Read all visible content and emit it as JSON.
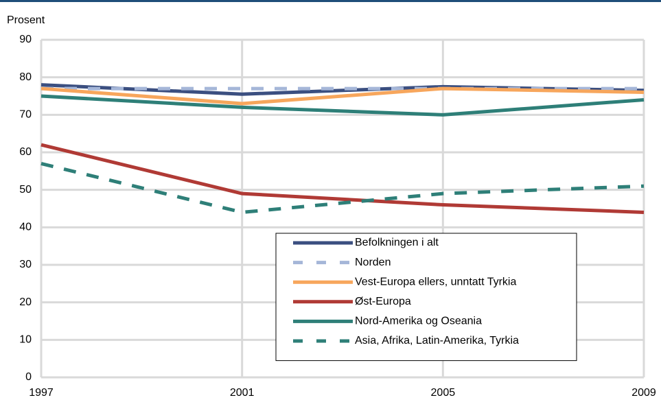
{
  "chart_data": {
    "type": "line",
    "y_label": "Prosent",
    "x": [
      1997,
      2001,
      2005,
      2009
    ],
    "xlim": [
      1997,
      2009
    ],
    "xticks": [
      1997,
      2001,
      2005,
      2009
    ],
    "ylim": [
      0,
      90
    ],
    "yticks": [
      0,
      10,
      20,
      30,
      40,
      50,
      60,
      70,
      80,
      90
    ],
    "grid": true,
    "series": [
      {
        "name": "Befolkningen i alt",
        "color": "#3b4f80",
        "dashed": false,
        "values": [
          78,
          75.5,
          77.5,
          76.5
        ]
      },
      {
        "name": "Norden",
        "color": "#a5b6d8",
        "dashed": true,
        "values": [
          77,
          77,
          77,
          77
        ]
      },
      {
        "name": "Vest-Europa ellers, unntatt Tyrkia",
        "color": "#f7a65c",
        "dashed": false,
        "values": [
          77,
          73,
          77,
          76
        ]
      },
      {
        "name": "Øst-Europa",
        "color": "#b03a35",
        "dashed": false,
        "values": [
          62,
          49,
          46,
          44
        ]
      },
      {
        "name": "Nord-Amerika og Oseania",
        "color": "#2e7f78",
        "dashed": false,
        "values": [
          75,
          72,
          70,
          74
        ]
      },
      {
        "name": "Asia, Afrika, Latin-Amerika, Tyrkia",
        "color": "#2e7f78",
        "dashed": true,
        "values": [
          57,
          44,
          49,
          51
        ]
      }
    ]
  }
}
